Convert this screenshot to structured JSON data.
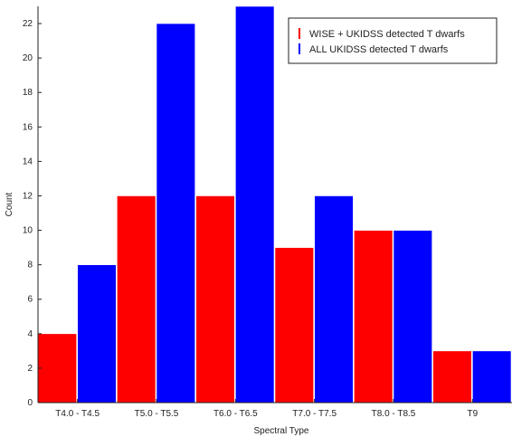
{
  "chart_data": {
    "type": "bar",
    "title": "",
    "xlabel": "Spectral Type",
    "ylabel": "Count",
    "categories": [
      "T4.0 - T4.5",
      "T5.0 - T5.5",
      "T6.0 - T6.5",
      "T7.0 - T7.5",
      "T8.0 - T8.5",
      "T9"
    ],
    "series": [
      {
        "name": "WISE + UKIDSS detected T dwarfs",
        "color": "#ff0000",
        "values": [
          4,
          12,
          12,
          9,
          10,
          3
        ]
      },
      {
        "name": "ALL UKIDSS detected T dwarfs",
        "color": "#0000ff",
        "values": [
          8,
          22,
          23,
          12,
          10,
          3
        ]
      }
    ],
    "ylim": [
      0,
      23
    ],
    "yticks": [
      0,
      2,
      4,
      6,
      8,
      10,
      12,
      14,
      16,
      18,
      20,
      22
    ],
    "grid": false,
    "legend_position": "top-right"
  }
}
